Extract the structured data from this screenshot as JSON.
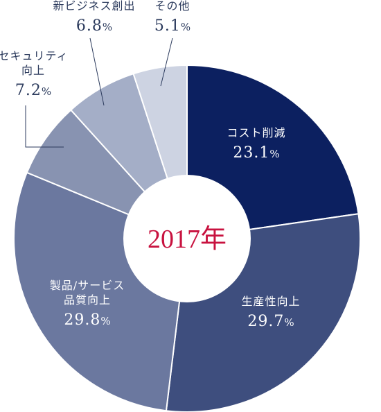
{
  "chart_data": {
    "type": "pie",
    "center_label": "2017年",
    "value_suffix": "%",
    "slices": [
      {
        "name_lines": [
          "コスト削減"
        ],
        "value": 23.1,
        "value_text": "23.1",
        "color": "#0c2060",
        "text_color": "#ffffff"
      },
      {
        "name_lines": [
          "生産性向上"
        ],
        "value": 29.7,
        "value_text": "29.7",
        "color": "#3e4e7e",
        "text_color": "#ffffff"
      },
      {
        "name_lines": [
          "製品/サービス",
          "品質向上"
        ],
        "value": 29.8,
        "value_text": "29.8",
        "color": "#6b789f",
        "text_color": "#ffffff"
      },
      {
        "name_lines": [
          "セキュリティ",
          "向上"
        ],
        "value": 7.2,
        "value_text": "7.2",
        "color": "#8893b1",
        "text_color": "#2b3a5c"
      },
      {
        "name_lines": [
          "新ビジネス創出"
        ],
        "value": 6.8,
        "value_text": "6.8",
        "color": "#a4aec7",
        "text_color": "#2b3a5c"
      },
      {
        "name_lines": [
          "その他"
        ],
        "value": 5.1,
        "value_text": "5.1",
        "color": "#cdd3e2",
        "text_color": "#2b3a5c"
      }
    ],
    "colors": {
      "center_text": "#c8123f",
      "outside_text": "#2b3a5c",
      "leader_line": "#2b3a5c"
    }
  }
}
